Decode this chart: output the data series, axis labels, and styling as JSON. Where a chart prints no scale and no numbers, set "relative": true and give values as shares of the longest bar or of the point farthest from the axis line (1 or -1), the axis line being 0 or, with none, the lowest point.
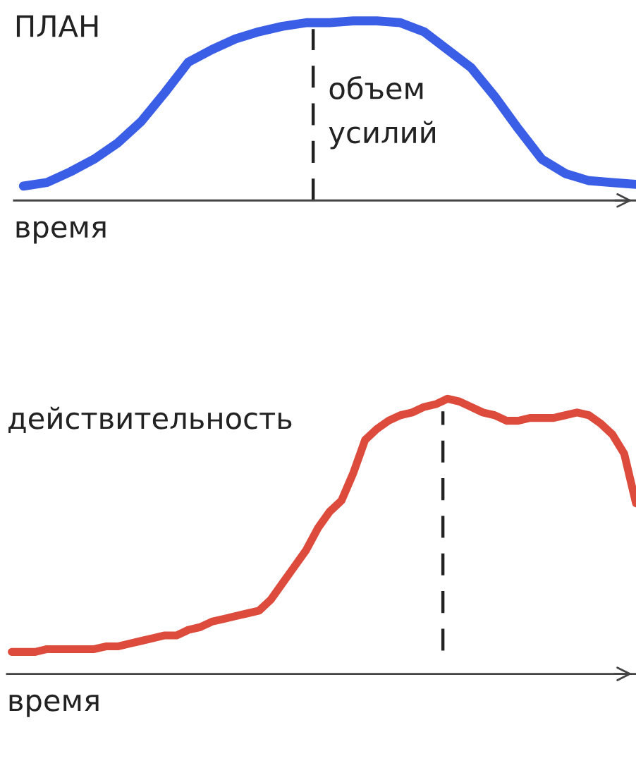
{
  "chart_data": [
    {
      "type": "line",
      "title": "ПЛАН",
      "xlabel": "время",
      "relative": true,
      "categories": [
        null,
        null,
        null,
        null,
        null,
        null,
        null,
        null,
        null,
        null,
        null,
        null,
        null,
        null,
        null,
        null,
        null,
        null,
        null,
        null,
        null,
        null,
        null,
        null,
        null,
        null,
        null
      ],
      "series": [
        {
          "color": "#3b5ee6",
          "values": [
            0.08,
            0.1,
            0.16,
            0.23,
            0.32,
            0.44,
            0.6,
            0.77,
            0.84,
            0.9,
            0.94,
            0.97,
            0.99,
            0.99,
            1.0,
            1.0,
            0.99,
            0.94,
            0.84,
            0.74,
            0.58,
            0.4,
            0.23,
            0.15,
            0.11,
            0.1,
            0.09
          ]
        }
      ],
      "annotations": [
        "объем\nусилий"
      ]
    },
    {
      "type": "line",
      "title": "действительность",
      "xlabel": "время",
      "relative": true,
      "categories": [
        null,
        null,
        null,
        null,
        null,
        null,
        null,
        null,
        null,
        null,
        null,
        null,
        null,
        null,
        null,
        null,
        null,
        null,
        null,
        null,
        null,
        null,
        null,
        null,
        null,
        null,
        null,
        null,
        null,
        null,
        null,
        null,
        null,
        null,
        null,
        null,
        null,
        null,
        null,
        null,
        null,
        null,
        null,
        null,
        null,
        null,
        null,
        null,
        null,
        null,
        null,
        null,
        null,
        null
      ],
      "series": [
        {
          "color": "#dc4b3c",
          "values": [
            0.08,
            0.08,
            0.08,
            0.09,
            0.09,
            0.09,
            0.09,
            0.09,
            0.1,
            0.1,
            0.11,
            0.12,
            0.13,
            0.14,
            0.14,
            0.16,
            0.17,
            0.19,
            0.2,
            0.21,
            0.22,
            0.23,
            0.27,
            0.33,
            0.39,
            0.45,
            0.53,
            0.59,
            0.63,
            0.73,
            0.85,
            0.89,
            0.92,
            0.94,
            0.95,
            0.97,
            0.98,
            1.0,
            0.99,
            0.97,
            0.95,
            0.94,
            0.92,
            0.92,
            0.93,
            0.93,
            0.93,
            0.94,
            0.95,
            0.94,
            0.91,
            0.87,
            0.8,
            0.62
          ]
        }
      ]
    }
  ]
}
